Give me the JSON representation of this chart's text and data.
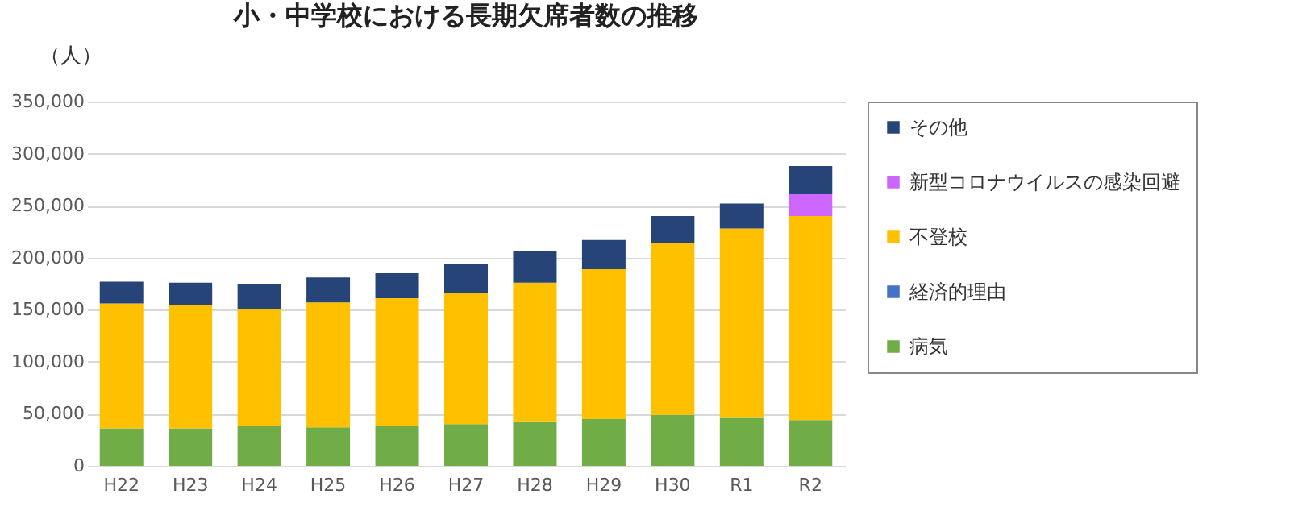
{
  "chart_data": {
    "type": "bar",
    "title": "小・中学校における長期欠席者数の推移",
    "ylabel": "（人）",
    "stacked": true,
    "grid": "y",
    "legend": "right",
    "categories": [
      "H22",
      "H23",
      "H24",
      "H25",
      "H26",
      "H27",
      "H28",
      "H29",
      "H30",
      "R1",
      "R2"
    ],
    "ylim": [
      0,
      350000
    ],
    "yticks": [
      {
        "value": 0,
        "label": "0"
      },
      {
        "value": 50000,
        "label": "50,000"
      },
      {
        "value": 100000,
        "label": "100,000"
      },
      {
        "value": 150000,
        "label": "150,000"
      },
      {
        "value": 200000,
        "label": "200,000"
      },
      {
        "value": 250000,
        "label": "250,000"
      },
      {
        "value": 300000,
        "label": "300,000"
      },
      {
        "value": 350000,
        "label": "350,000"
      }
    ],
    "series": [
      {
        "name": "病気",
        "color": "#70ad47",
        "values": [
          36000,
          36000,
          38000,
          37000,
          38000,
          40000,
          42000,
          45000,
          49000,
          46000,
          44000
        ]
      },
      {
        "name": "経済的理由",
        "color": "#4472c4",
        "values": [
          0,
          0,
          0,
          0,
          0,
          0,
          0,
          0,
          0,
          0,
          0
        ]
      },
      {
        "name": "不登校",
        "color": "#ffc000",
        "values": [
          120000,
          118000,
          113000,
          120000,
          123000,
          126000,
          134000,
          144000,
          165000,
          182000,
          196000
        ]
      },
      {
        "name": "新型コロナウイルスの感染回避",
        "color": "#cc66ff",
        "values": [
          null,
          null,
          null,
          null,
          null,
          null,
          null,
          null,
          null,
          null,
          21000
        ]
      },
      {
        "name": "その他",
        "color": "#264478",
        "values": [
          21000,
          22000,
          24000,
          24000,
          24000,
          28000,
          30000,
          28000,
          26000,
          24000,
          27000
        ]
      }
    ]
  }
}
